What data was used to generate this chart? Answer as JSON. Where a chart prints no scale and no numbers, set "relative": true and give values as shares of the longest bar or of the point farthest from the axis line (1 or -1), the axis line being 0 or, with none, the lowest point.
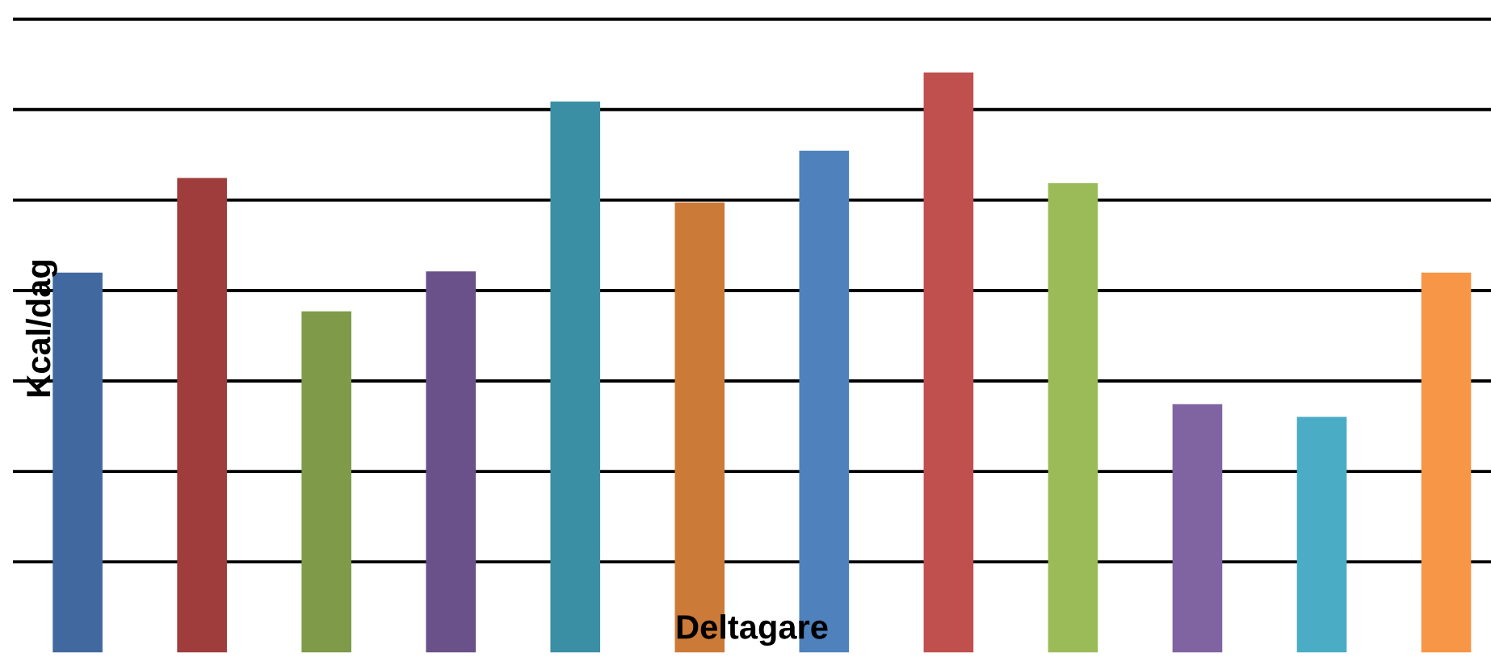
{
  "chart_data": {
    "type": "bar",
    "relative": true,
    "xlabel": "Deltagare",
    "ylabel": "Kcal/dag",
    "grid": "y",
    "categories": [
      null,
      null,
      null,
      null,
      null,
      null,
      null,
      null,
      null,
      null,
      null,
      null
    ],
    "values": [
      0.655,
      0.818,
      0.588,
      0.657,
      0.95,
      0.776,
      0.865,
      1.0,
      0.809,
      0.428,
      0.406,
      0.655
    ],
    "colors": [
      "#4169a0",
      "#9e3d3b",
      "#7f9a48",
      "#6a5189",
      "#3a8fa5",
      "#cc7a37",
      "#4f81bd",
      "#c0504d",
      "#9bbb59",
      "#8064a2",
      "#4bacc6",
      "#f79646"
    ]
  }
}
